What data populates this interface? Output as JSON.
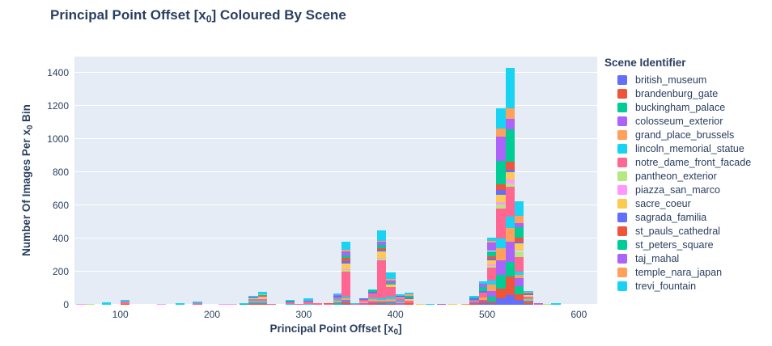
{
  "title": {
    "pre": "Principal Point Offset [x",
    "sub": "0",
    "post": "] Coloured By Scene"
  },
  "x_axis": {
    "title_pre": "Principal Point Offset [x",
    "title_sub": "0",
    "title_post": "]",
    "ticks": [
      100,
      200,
      300,
      400,
      500,
      600
    ],
    "range": [
      50,
      620
    ]
  },
  "y_axis": {
    "title_pre": "Number Of Images Per x",
    "title_sub": "0",
    "title_post": " Bin",
    "ticks": [
      0,
      200,
      400,
      600,
      800,
      1000,
      1200,
      1400
    ],
    "range": [
      0,
      1500
    ]
  },
  "legend": {
    "title": "Scene Identifier"
  },
  "colors": {
    "text": "#2a3f5f",
    "plot_background": "#e5ecf6",
    "gridline": "#ffffff"
  },
  "chart_data": {
    "type": "bar",
    "stacked": true,
    "title": "Principal Point Offset [x0] Coloured By Scene",
    "xlabel": "Principal Point Offset [x0]",
    "ylabel": "Number Of Images Per x0 Bin",
    "xlim": [
      50,
      620
    ],
    "ylim": [
      0,
      1500
    ],
    "grid": true,
    "legend_position": "right",
    "bin_width": 10,
    "scenes": [
      {
        "name": "british_museum",
        "color": "#636EFA"
      },
      {
        "name": "brandenburg_gate",
        "color": "#EF553B"
      },
      {
        "name": "buckingham_palace",
        "color": "#00CC96"
      },
      {
        "name": "colosseum_exterior",
        "color": "#AB63FA"
      },
      {
        "name": "grand_place_brussels",
        "color": "#FFA15A"
      },
      {
        "name": "lincoln_memorial_statue",
        "color": "#19D3F3"
      },
      {
        "name": "notre_dame_front_facade",
        "color": "#FF6692"
      },
      {
        "name": "pantheon_exterior",
        "color": "#B6E880"
      },
      {
        "name": "piazza_san_marco",
        "color": "#FF97FF"
      },
      {
        "name": "sacre_coeur",
        "color": "#FECB52"
      },
      {
        "name": "sagrada_familia",
        "color": "#636EFA"
      },
      {
        "name": "st_pauls_cathedral",
        "color": "#EF553B"
      },
      {
        "name": "st_peters_square",
        "color": "#00CC96"
      },
      {
        "name": "taj_mahal",
        "color": "#AB63FA"
      },
      {
        "name": "temple_nara_japan",
        "color": "#FFA15A"
      },
      {
        "name": "trevi_fountain",
        "color": "#19D3F3"
      }
    ],
    "bins": [
      {
        "x": 57,
        "counts": {
          "piazza_san_marco": 7
        }
      },
      {
        "x": 67,
        "counts": {
          "pantheon_exterior": 5
        }
      },
      {
        "x": 85,
        "counts": {
          "trevi_fountain": 14
        }
      },
      {
        "x": 105,
        "counts": {
          "brandenburg_gate": 5,
          "notre_dame_front_facade": 14,
          "trevi_fountain": 12
        }
      },
      {
        "x": 145,
        "counts": {
          "piazza_san_marco": 6
        }
      },
      {
        "x": 165,
        "counts": {
          "trevi_fountain": 10
        }
      },
      {
        "x": 184,
        "counts": {
          "notre_dame_front_facade": 12,
          "trevi_fountain": 10
        }
      },
      {
        "x": 212,
        "counts": {
          "piazza_san_marco": 4
        }
      },
      {
        "x": 222,
        "counts": {
          "piazza_san_marco": 4
        }
      },
      {
        "x": 235,
        "counts": {
          "buckingham_palace": 5,
          "lincoln_memorial_statue": 4
        }
      },
      {
        "x": 245,
        "counts": {
          "british_museum": 3,
          "brandenburg_gate": 4,
          "buckingham_palace": 6,
          "colosseum_exterior": 4,
          "grand_place_brussels": 5,
          "lincoln_memorial_statue": 4,
          "notre_dame_front_facade": 8,
          "pantheon_exterior": 3,
          "sacre_coeur": 5,
          "st_peters_square": 4,
          "taj_mahal": 3,
          "temple_nara_japan": 3,
          "trevi_fountain": 3
        }
      },
      {
        "x": 255,
        "counts": {
          "british_museum": 3,
          "brandenburg_gate": 4,
          "buckingham_palace": 5,
          "colosseum_exterior": 4,
          "grand_place_brussels": 5,
          "lincoln_memorial_statue": 5,
          "notre_dame_front_facade": 12,
          "pantheon_exterior": 3,
          "piazza_san_marco": 2,
          "sacre_coeur": 6,
          "sagrada_familia": 3,
          "st_pauls_cathedral": 3,
          "st_peters_square": 4,
          "taj_mahal": 3,
          "temple_nara_japan": 3,
          "trevi_fountain": 13
        }
      },
      {
        "x": 265,
        "counts": {
          "grand_place_brussels": 3,
          "notre_dame_front_facade": 3
        }
      },
      {
        "x": 285,
        "counts": {
          "lincoln_memorial_statue": 4,
          "notre_dame_front_facade": 10,
          "sagrada_familia": 5,
          "st_peters_square": 5,
          "trevi_fountain": 6
        }
      },
      {
        "x": 295,
        "counts": {
          "notre_dame_front_facade": 6
        }
      },
      {
        "x": 305,
        "counts": {
          "lincoln_memorial_statue": 4,
          "notre_dame_front_facade": 14,
          "sagrada_familia": 6,
          "trevi_fountain": 14
        }
      },
      {
        "x": 315,
        "counts": {
          "notre_dame_front_facade": 8
        }
      },
      {
        "x": 327,
        "counts": {
          "notre_dame_front_facade": 5,
          "st_pauls_cathedral": 5
        }
      },
      {
        "x": 337,
        "counts": {
          "buckingham_palace": 8,
          "colosseum_exterior": 8,
          "grand_place_brussels": 8,
          "lincoln_memorial_statue": 8,
          "notre_dame_front_facade": 14,
          "sagrada_familia": 8,
          "taj_mahal": 6,
          "trevi_fountain": 8
        }
      },
      {
        "x": 346,
        "counts": {
          "british_museum": 5,
          "brandenburg_gate": 8,
          "buckingham_palace": 8,
          "colosseum_exterior": 10,
          "grand_place_brussels": 10,
          "lincoln_memorial_statue": 10,
          "notre_dame_front_facade": 150,
          "pantheon_exterior": 8,
          "piazza_san_marco": 5,
          "sacre_coeur": 35,
          "sagrada_familia": 15,
          "st_pauls_cathedral": 20,
          "st_peters_square": 15,
          "taj_mahal": 24,
          "temple_nara_japan": 10,
          "trevi_fountain": 49
        }
      },
      {
        "x": 356,
        "counts": {
          "notre_dame_front_facade": 4,
          "trevi_fountain": 4
        }
      },
      {
        "x": 366,
        "counts": {
          "colosseum_exterior": 10,
          "grand_place_brussels": 8,
          "notre_dame_front_facade": 10,
          "sagrada_familia": 12
        }
      },
      {
        "x": 375,
        "counts": {
          "brandenburg_gate": 10,
          "colosseum_exterior": 12,
          "grand_place_brussels": 12,
          "lincoln_memorial_statue": 10,
          "notre_dame_front_facade": 25,
          "sagrada_familia": 8,
          "st_peters_square": 10,
          "trevi_fountain": 8
        }
      },
      {
        "x": 385,
        "counts": {
          "british_museum": 4,
          "brandenburg_gate": 4,
          "buckingham_palace": 6,
          "colosseum_exterior": 8,
          "grand_place_brussels": 8,
          "lincoln_memorial_statue": 10,
          "notre_dame_front_facade": 230,
          "pantheon_exterior": 8,
          "piazza_san_marco": 6,
          "sacre_coeur": 40,
          "sagrada_familia": 10,
          "st_pauls_cathedral": 10,
          "st_peters_square": 20,
          "taj_mahal": 15,
          "temple_nara_japan": 8,
          "trevi_fountain": 63
        }
      },
      {
        "x": 395,
        "counts": {
          "british_museum": 3,
          "brandenburg_gate": 3,
          "buckingham_palace": 6,
          "colosseum_exterior": 10,
          "grand_place_brussels": 10,
          "lincoln_memorial_statue": 15,
          "notre_dame_front_facade": 60,
          "sacre_coeur": 15,
          "st_peters_square": 10,
          "taj_mahal": 15,
          "temple_nara_japan": 8,
          "trevi_fountain": 40
        }
      },
      {
        "x": 405,
        "counts": {
          "colosseum_exterior": 8,
          "grand_place_brussels": 8,
          "lincoln_memorial_statue": 8,
          "notre_dame_front_facade": 15,
          "sacre_coeur": 6,
          "sagrada_familia": 8,
          "trevi_fountain": 10
        }
      },
      {
        "x": 415,
        "counts": {
          "brandenburg_gate": 8,
          "notre_dame_front_facade": 15,
          "sacre_coeur": 10,
          "sagrada_familia": 12,
          "st_peters_square": 10,
          "temple_nara_japan": 8,
          "trevi_fountain": 12
        }
      },
      {
        "x": 427,
        "counts": {
          "sacre_coeur": 5
        }
      },
      {
        "x": 438,
        "counts": {
          "trevi_fountain": 5
        }
      },
      {
        "x": 450,
        "counts": {
          "taj_mahal": 5
        }
      },
      {
        "x": 462,
        "counts": {
          "sacre_coeur": 4
        }
      },
      {
        "x": 477,
        "counts": {
          "temple_nara_japan": 3
        }
      },
      {
        "x": 486,
        "counts": {
          "brandenburg_gate": 8,
          "colosseum_exterior": 5,
          "lincoln_memorial_statue": 8,
          "notre_dame_front_facade": 10,
          "sagrada_familia": 8,
          "st_peters_square": 6,
          "trevi_fountain": 10
        }
      },
      {
        "x": 496,
        "counts": {
          "british_museum": 8,
          "brandenburg_gate": 15,
          "colosseum_exterior": 7,
          "grand_place_brussels": 12,
          "notre_dame_front_facade": 30,
          "sagrada_familia": 10,
          "st_peters_square": 25,
          "taj_mahal": 18,
          "trevi_fountain": 15
        }
      },
      {
        "x": 505,
        "counts": {
          "british_museum": 10,
          "brandenburg_gate": 12,
          "buckingham_palace": 25,
          "colosseum_exterior": 35,
          "grand_place_brussels": 40,
          "lincoln_memorial_statue": 25,
          "notre_dame_front_facade": 80,
          "pantheon_exterior": 10,
          "piazza_san_marco": 6,
          "sacre_coeur": 25,
          "sagrada_familia": 12,
          "st_pauls_cathedral": 15,
          "st_peters_square": 30,
          "taj_mahal": 50,
          "temple_nara_japan": 10,
          "trevi_fountain": 20
        }
      },
      {
        "x": 515,
        "counts": {
          "british_museum": 40,
          "brandenburg_gate": 60,
          "buckingham_palace": 80,
          "colosseum_exterior": 90,
          "grand_place_brussels": 70,
          "lincoln_memorial_statue": 60,
          "notre_dame_front_facade": 180,
          "pantheon_exterior": 25,
          "piazza_san_marco": 15,
          "sacre_coeur": 45,
          "sagrada_familia": 30,
          "st_pauls_cathedral": 35,
          "st_peters_square": 140,
          "taj_mahal": 145,
          "temple_nara_japan": 50,
          "trevi_fountain": 120
        }
      },
      {
        "x": 525,
        "counts": {
          "british_museum": 60,
          "brandenburg_gate": 110,
          "buckingham_palace": 90,
          "colosseum_exterior": 122,
          "grand_place_brussels": 80,
          "lincoln_memorial_statue": 73,
          "notre_dame_front_facade": 180,
          "pantheon_exterior": 16,
          "piazza_san_marco": 24,
          "sacre_coeur": 44,
          "sagrada_familia": 16,
          "st_pauls_cathedral": 49,
          "st_peters_square": 195,
          "taj_mahal": 63,
          "temple_nara_japan": 63,
          "trevi_fountain": 245
        }
      },
      {
        "x": 535,
        "counts": {
          "british_museum": 29,
          "brandenburg_gate": 34,
          "buckingham_palace": 49,
          "colosseum_exterior": 49,
          "grand_place_brussels": 20,
          "lincoln_memorial_statue": 20,
          "notre_dame_front_facade": 85,
          "pantheon_exterior": 39,
          "piazza_san_marco": 8,
          "sacre_coeur": 39,
          "sagrada_familia": 10,
          "st_pauls_cathedral": 24,
          "st_peters_square": 63,
          "taj_mahal": 24,
          "temple_nara_japan": 44,
          "trevi_fountain": 88
        }
      },
      {
        "x": 545,
        "counts": {
          "british_museum": 6,
          "brandenburg_gate": 8,
          "buckingham_palace": 6,
          "colosseum_exterior": 6,
          "grand_place_brussels": 8,
          "lincoln_memorial_statue": 6,
          "notre_dame_front_facade": 10,
          "sacre_coeur": 8,
          "sagrada_familia": 5,
          "st_peters_square": 6,
          "taj_mahal": 5,
          "temple_nara_japan": 4,
          "trevi_fountain": 5
        }
      },
      {
        "x": 556,
        "counts": {
          "notre_dame_front_facade": 4,
          "taj_mahal": 4
        }
      },
      {
        "x": 566,
        "counts": {
          "pantheon_exterior": 3
        }
      },
      {
        "x": 575,
        "counts": {
          "trevi_fountain": 8
        }
      }
    ]
  }
}
